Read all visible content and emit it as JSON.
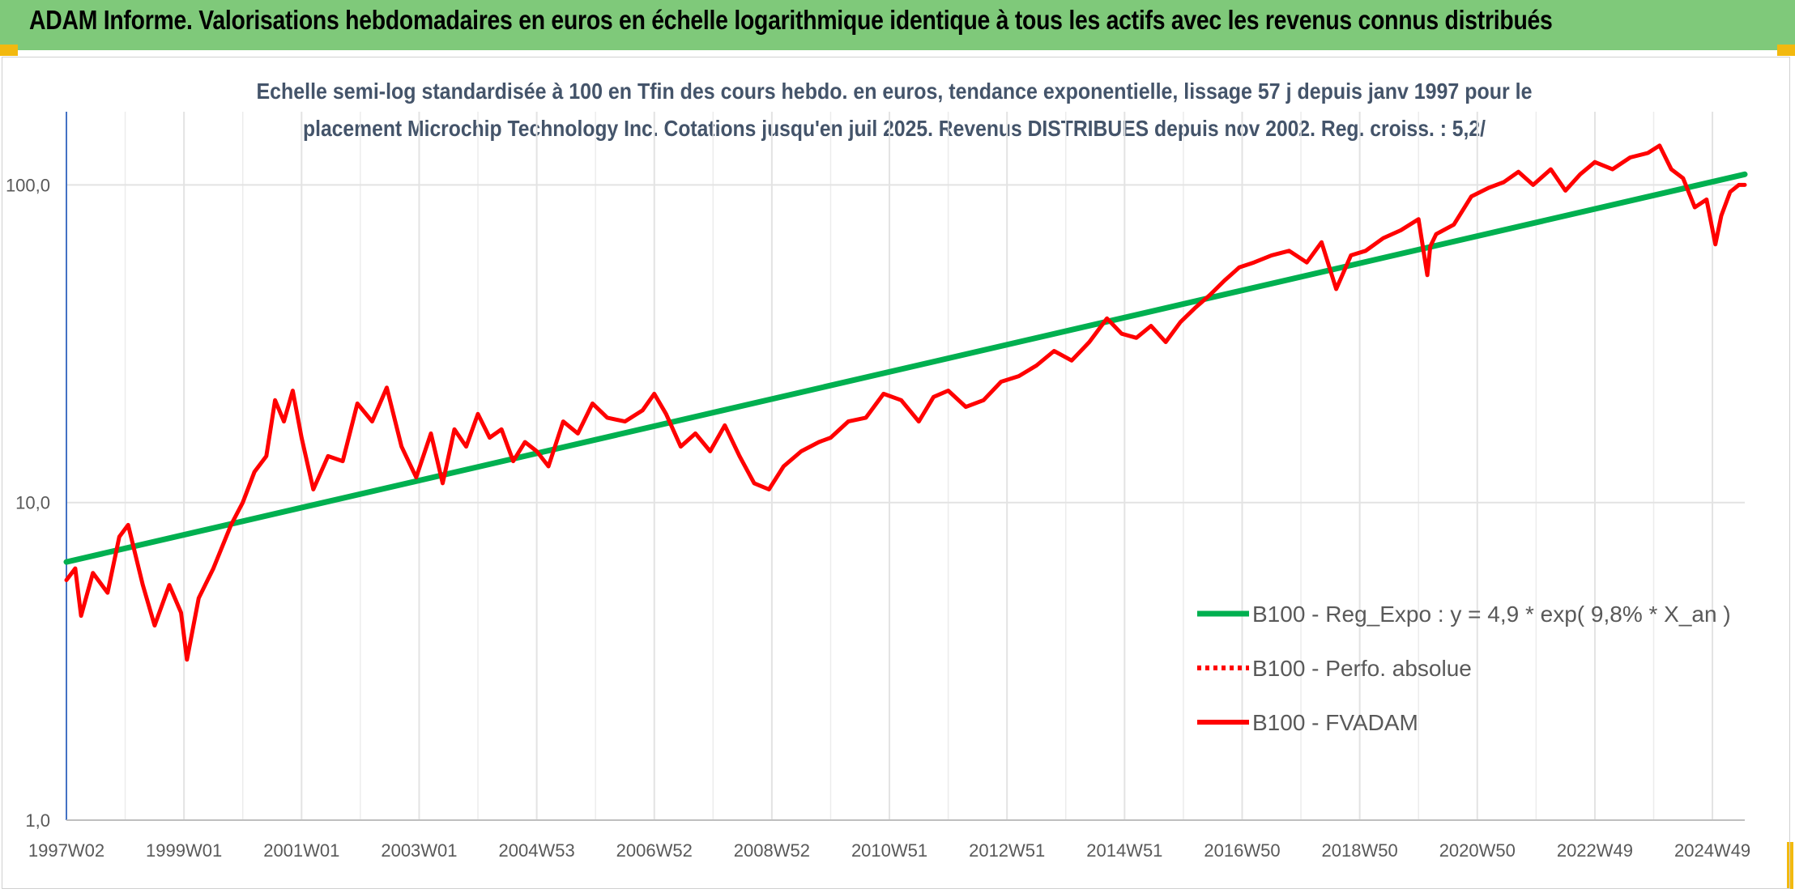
{
  "header": {
    "title": "ADAM Informe. Valorisations hebdomadaires en euros en échelle logarithmique identique à tous les actifs avec les revenus connus distribués",
    "accent_color": "#7fc97a",
    "corner_color": "#f2b90f"
  },
  "chart_data": {
    "type": "line",
    "title_lines": [
      "Echelle semi-log standardisée à 100 en Tfin des cours hebdo. en euros, tendance exponentielle, lissage 57 j depuis janv 1997 pour le",
      "placement Microchip Technology Inc. Cotations jusqu'en juil 2025. Revenus DISTRIBUES depuis nov 2002. Reg. croiss. : 5,2/"
    ],
    "y_scale": "log",
    "ylim": [
      1,
      170
    ],
    "y_ticks": [
      {
        "value": 1,
        "label": "1,0"
      },
      {
        "value": 10,
        "label": "10,0"
      },
      {
        "value": 100,
        "label": "100,0"
      }
    ],
    "xlim": [
      1997.0,
      2025.55
    ],
    "x_ticks": [
      {
        "value": 1997.0,
        "label": "1997W02"
      },
      {
        "value": 1999.0,
        "label": "1999W01"
      },
      {
        "value": 2001.0,
        "label": "2001W01"
      },
      {
        "value": 2003.0,
        "label": "2003W01"
      },
      {
        "value": 2005.0,
        "label": "2004W53"
      },
      {
        "value": 2007.0,
        "label": "2006W52"
      },
      {
        "value": 2009.0,
        "label": "2008W52"
      },
      {
        "value": 2011.0,
        "label": "2010W51"
      },
      {
        "value": 2013.0,
        "label": "2012W51"
      },
      {
        "value": 2015.0,
        "label": "2014W51"
      },
      {
        "value": 2017.0,
        "label": "2016W50"
      },
      {
        "value": 2019.0,
        "label": "2018W50"
      },
      {
        "value": 2021.0,
        "label": "2020W50"
      },
      {
        "value": 2023.0,
        "label": "2022W49"
      },
      {
        "value": 2025.0,
        "label": "2024W49"
      }
    ],
    "grid": "vertical and horizontal",
    "legend_position": "bottom-right",
    "series": [
      {
        "name": "B100 - Reg_Expo : y = 4,9 * exp( 9,8% *  X_an )",
        "color": "#00b050",
        "style": "solid",
        "x": [
          1997.0,
          2025.55
        ],
        "y": [
          6.5,
          108
        ]
      },
      {
        "name": "B100 - Perfo. absolue",
        "color": "#ff0000",
        "style": "dotted",
        "x": [],
        "y": []
      },
      {
        "name": "B100 - FVADAM",
        "color": "#ff0000",
        "style": "solid",
        "x": [
          1997.0,
          1997.15,
          1997.25,
          1997.45,
          1997.7,
          1997.9,
          1998.05,
          1998.3,
          1998.5,
          1998.75,
          1998.95,
          1999.05,
          1999.25,
          1999.5,
          1999.8,
          2000.0,
          2000.2,
          2000.4,
          2000.55,
          2000.7,
          2000.85,
          2001.0,
          2001.2,
          2001.45,
          2001.7,
          2001.95,
          2002.2,
          2002.45,
          2002.7,
          2002.95,
          2003.2,
          2003.4,
          2003.6,
          2003.8,
          2004.0,
          2004.2,
          2004.4,
          2004.6,
          2004.8,
          2005.0,
          2005.2,
          2005.45,
          2005.7,
          2005.95,
          2006.2,
          2006.5,
          2006.8,
          2007.0,
          2007.2,
          2007.45,
          2007.7,
          2007.95,
          2008.2,
          2008.45,
          2008.7,
          2008.95,
          2009.2,
          2009.5,
          2009.8,
          2010.0,
          2010.3,
          2010.6,
          2010.9,
          2011.2,
          2011.5,
          2011.75,
          2012.0,
          2012.3,
          2012.6,
          2012.9,
          2013.2,
          2013.5,
          2013.8,
          2014.1,
          2014.4,
          2014.7,
          2014.95,
          2015.2,
          2015.45,
          2015.7,
          2015.95,
          2016.2,
          2016.45,
          2016.7,
          2016.95,
          2017.2,
          2017.5,
          2017.8,
          2018.1,
          2018.35,
          2018.6,
          2018.85,
          2019.1,
          2019.4,
          2019.7,
          2020.0,
          2020.15,
          2020.2,
          2020.3,
          2020.6,
          2020.9,
          2021.2,
          2021.45,
          2021.7,
          2021.95,
          2022.25,
          2022.5,
          2022.75,
          2023.0,
          2023.3,
          2023.6,
          2023.9,
          2024.1,
          2024.3,
          2024.5,
          2024.7,
          2024.9,
          2025.05,
          2025.15,
          2025.3,
          2025.45,
          2025.55
        ],
        "y": [
          5.7,
          6.2,
          4.4,
          6.0,
          5.2,
          7.8,
          8.5,
          5.5,
          4.1,
          5.5,
          4.5,
          3.2,
          5.0,
          6.2,
          8.5,
          10.0,
          12.5,
          14.0,
          21.0,
          18.0,
          22.5,
          16.0,
          11.0,
          14.0,
          13.5,
          20.5,
          18.0,
          23.0,
          15.0,
          12.0,
          16.5,
          11.5,
          17.0,
          15.0,
          19.0,
          16.0,
          17.0,
          13.5,
          15.5,
          14.5,
          13.0,
          18.0,
          16.5,
          20.5,
          18.5,
          18.0,
          19.5,
          22.0,
          19.0,
          15.0,
          16.5,
          14.5,
          17.5,
          14.0,
          11.5,
          11.0,
          13.0,
          14.5,
          15.5,
          16.0,
          18.0,
          18.5,
          22.0,
          21.0,
          18.0,
          21.5,
          22.5,
          20.0,
          21.0,
          24.0,
          25.0,
          27.0,
          30.0,
          28.0,
          32.0,
          38.0,
          34.0,
          33.0,
          36.0,
          32.0,
          37.0,
          41.0,
          45.0,
          50.0,
          55.0,
          57.0,
          60.0,
          62.0,
          57.0,
          66.0,
          47.0,
          60.0,
          62.0,
          68.0,
          72.0,
          78.0,
          52.0,
          64.0,
          70.0,
          75.0,
          92.0,
          98.0,
          102.0,
          110.0,
          100.0,
          112.0,
          96.0,
          108.0,
          118.0,
          112.0,
          122.0,
          126.0,
          133.0,
          112.0,
          105.0,
          85.0,
          90.0,
          65.0,
          80.0,
          95.0,
          100.0,
          100.0
        ]
      }
    ]
  }
}
